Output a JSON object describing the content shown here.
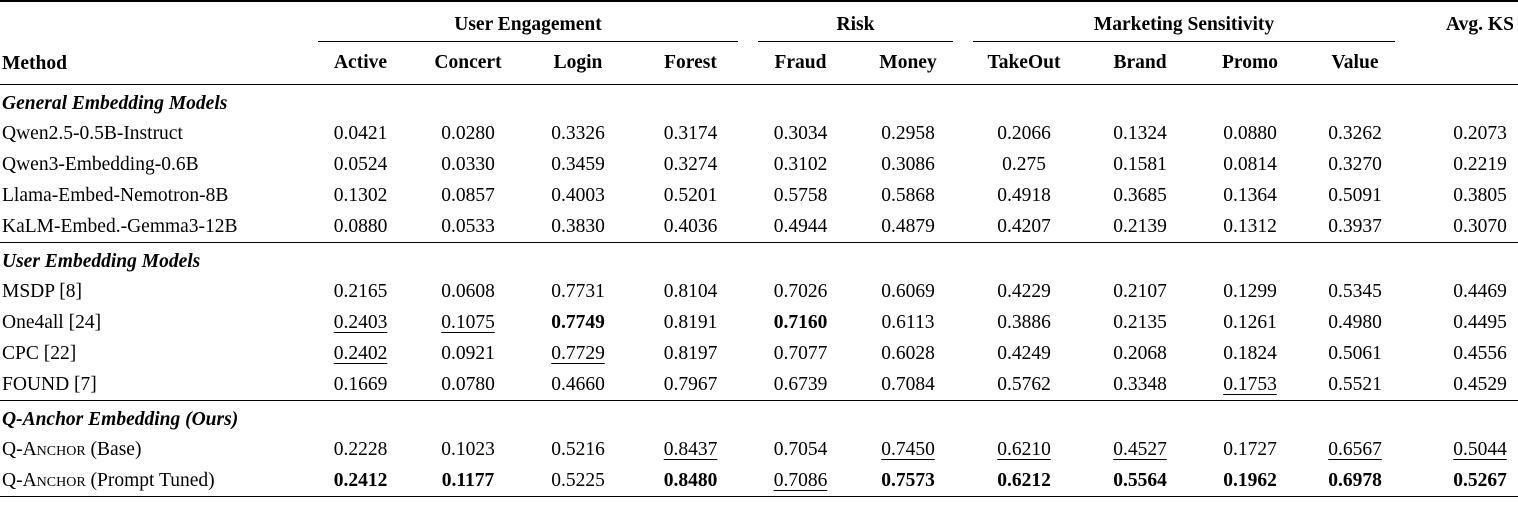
{
  "table": {
    "corner_header": "Method",
    "avg_ks_header": "Avg. KS",
    "groups": [
      {
        "label": "User Engagement",
        "cols": [
          "Active",
          "Concert",
          "Login",
          "Forest"
        ]
      },
      {
        "label": "Risk",
        "cols": [
          "Fraud",
          "Money"
        ]
      },
      {
        "label": "Marketing Sensitivity",
        "cols": [
          "TakeOut",
          "Brand",
          "Promo",
          "Value"
        ]
      }
    ],
    "sections": [
      {
        "title": "General Embedding Models",
        "rows": [
          {
            "method": "Qwen2.5-0.5B-Instruct",
            "suffix": "",
            "values": [
              "0.0421",
              "0.0280",
              "0.3326",
              "0.3174",
              "0.3034",
              "0.2958",
              "0.2066",
              "0.1324",
              "0.0880",
              "0.3262",
              "0.2073"
            ],
            "styles": [
              "",
              "",
              "",
              "",
              "",
              "",
              "",
              "",
              "",
              "",
              ""
            ]
          },
          {
            "method": "Qwen3-Embedding-0.6B",
            "suffix": "",
            "values": [
              "0.0524",
              "0.0330",
              "0.3459",
              "0.3274",
              "0.3102",
              "0.3086",
              "0.275",
              "0.1581",
              "0.0814",
              "0.3270",
              "0.2219"
            ],
            "styles": [
              "",
              "",
              "",
              "",
              "",
              "",
              "",
              "",
              "",
              "",
              ""
            ]
          },
          {
            "method": "Llama-Embed-Nemotron-8B",
            "suffix": "",
            "values": [
              "0.1302",
              "0.0857",
              "0.4003",
              "0.5201",
              "0.5758",
              "0.5868",
              "0.4918",
              "0.3685",
              "0.1364",
              "0.5091",
              "0.3805"
            ],
            "styles": [
              "",
              "",
              "",
              "",
              "",
              "",
              "",
              "",
              "",
              "",
              ""
            ]
          },
          {
            "method": "KaLM-Embed.-Gemma3-12B",
            "suffix": "",
            "values": [
              "0.0880",
              "0.0533",
              "0.3830",
              "0.4036",
              "0.4944",
              "0.4879",
              "0.4207",
              "0.2139",
              "0.1312",
              "0.3937",
              "0.3070"
            ],
            "styles": [
              "",
              "",
              "",
              "",
              "",
              "",
              "",
              "",
              "",
              "",
              ""
            ]
          }
        ]
      },
      {
        "title": "User Embedding Models",
        "rows": [
          {
            "method": "MSDP [8]",
            "suffix": "",
            "values": [
              "0.2165",
              "0.0608",
              "0.7731",
              "0.8104",
              "0.7026",
              "0.6069",
              "0.4229",
              "0.2107",
              "0.1299",
              "0.5345",
              "0.4469"
            ],
            "styles": [
              "",
              "",
              "",
              "",
              "",
              "",
              "",
              "",
              "",
              "",
              ""
            ]
          },
          {
            "method": "One4all [24]",
            "suffix": "",
            "values": [
              "0.2403",
              "0.1075",
              "0.7749",
              "0.8191",
              "0.7160",
              "0.6113",
              "0.3886",
              "0.2135",
              "0.1261",
              "0.4980",
              "0.4495"
            ],
            "styles": [
              "u",
              "u",
              "b",
              "",
              "b",
              "",
              "",
              "",
              "",
              "",
              ""
            ]
          },
          {
            "method": "CPC [22]",
            "suffix": "",
            "values": [
              "0.2402",
              "0.0921",
              "0.7729",
              "0.8197",
              "0.7077",
              "0.6028",
              "0.4249",
              "0.2068",
              "0.1824",
              "0.5061",
              "0.4556"
            ],
            "styles": [
              "u",
              "",
              "u",
              "",
              "",
              "",
              "",
              "",
              "",
              "",
              ""
            ]
          },
          {
            "method": "FOUND [7]",
            "suffix": "",
            "values": [
              "0.1669",
              "0.0780",
              "0.4660",
              "0.7967",
              "0.6739",
              "0.7084",
              "0.5762",
              "0.3348",
              "0.1753",
              "0.5521",
              "0.4529"
            ],
            "styles": [
              "",
              "",
              "",
              "",
              "",
              "",
              "",
              "",
              "u",
              "",
              ""
            ]
          }
        ]
      },
      {
        "title": "Q-Anchor Embedding (Ours)",
        "rows": [
          {
            "method": "Q-Anchor",
            "suffix": " (Base)",
            "values": [
              "0.2228",
              "0.1023",
              "0.5216",
              "0.8437",
              "0.7054",
              "0.7450",
              "0.6210",
              "0.4527",
              "0.1727",
              "0.6567",
              "0.5044"
            ],
            "styles": [
              "",
              "",
              "",
              "u",
              "",
              "u",
              "u",
              "u",
              "",
              "u",
              "u"
            ]
          },
          {
            "method": "Q-Anchor",
            "suffix": " (Prompt Tuned)",
            "values": [
              "0.2412",
              "0.1177",
              "0.5225",
              "0.8480",
              "0.7086",
              "0.7573",
              "0.6212",
              "0.5564",
              "0.1962",
              "0.6978",
              "0.5267"
            ],
            "styles": [
              "b",
              "b",
              "",
              "b",
              "u",
              "b",
              "b",
              "b",
              "b",
              "b",
              "b"
            ]
          }
        ]
      }
    ]
  }
}
